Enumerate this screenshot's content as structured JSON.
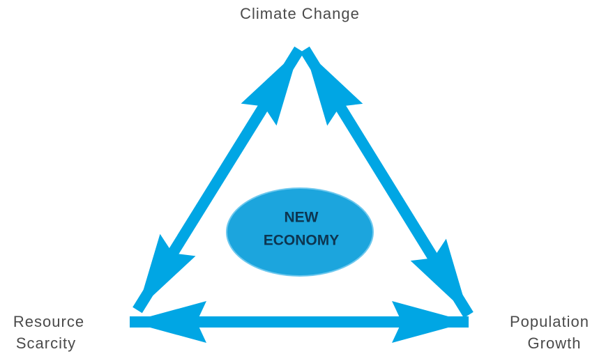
{
  "nodes": [
    {
      "lines": [
        "Climate Change"
      ]
    },
    {
      "lines": [
        "Resource",
        "Scarcity"
      ]
    },
    {
      "lines": [
        "Population",
        "Growth"
      ]
    }
  ],
  "center": {
    "lines": [
      "NEW",
      "ECONOMY"
    ]
  }
}
